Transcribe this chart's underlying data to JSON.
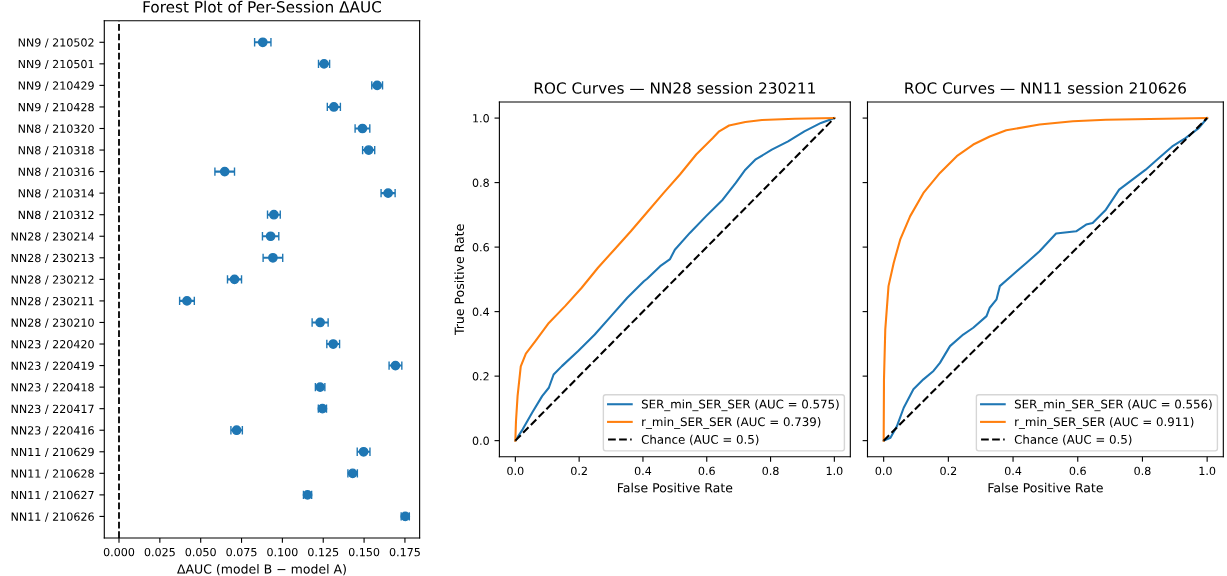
{
  "chart_data": [
    {
      "type": "scatter",
      "orientation": "horizontal",
      "title": "Forest Plot of Per-Session ΔAUC",
      "xlabel": "ΔAUC (model B − model A)",
      "categories": [
        "NN9 / 210502",
        "NN9 / 210501",
        "NN9 / 210429",
        "NN9 / 210428",
        "NN8 / 210320",
        "NN8 / 210318",
        "NN8 / 210316",
        "NN8 / 210314",
        "NN8 / 210312",
        "NN28 / 230214",
        "NN28 / 230213",
        "NN28 / 230212",
        "NN28 / 230211",
        "NN28 / 230210",
        "NN23 / 220420",
        "NN23 / 220419",
        "NN23 / 220418",
        "NN23 / 220417",
        "NN23 / 220416",
        "NN11 / 210629",
        "NN11 / 210628",
        "NN11 / 210627",
        "NN11 / 210626"
      ],
      "series": [
        {
          "color": "#1f77b4",
          "values": [
            0.088,
            0.1255,
            0.158,
            0.1315,
            0.149,
            0.1528,
            0.0647,
            0.1647,
            0.0948,
            0.0928,
            0.0942,
            0.0707,
            0.0416,
            0.1231,
            0.1311,
            0.1692,
            0.1231,
            0.1245,
            0.072,
            0.1497,
            0.143,
            0.1154,
            0.1752
          ],
          "errors": [
            0.005,
            0.0034,
            0.0033,
            0.004,
            0.0045,
            0.0037,
            0.006,
            0.0043,
            0.0039,
            0.005,
            0.006,
            0.0043,
            0.0045,
            0.0049,
            0.0039,
            0.0039,
            0.0029,
            0.0025,
            0.0035,
            0.0039,
            0.0029,
            0.0025,
            0.0025
          ]
        }
      ],
      "marker": "circle",
      "xlim": [
        -0.009,
        0.184
      ],
      "xticks": [
        {
          "value": 0,
          "label": "0.000"
        },
        0.025,
        {
          "value": 0.05,
          "label": "0.050"
        },
        {
          "value": 0.075,
          "label": "0.075"
        },
        {
          "value": 0.1,
          "label": "0.100"
        },
        {
          "value": 0.125,
          "label": "0.125"
        },
        {
          "value": 0.15,
          "label": "0.150"
        },
        {
          "value": 0.175,
          "label": "0.175"
        }
      ],
      "ref_lines": [
        {
          "axis": "x",
          "value": 0,
          "color": "#000000",
          "line_style": "dashed"
        }
      ],
      "grid": false,
      "legend": false
    },
    {
      "type": "line",
      "title": "ROC Curves — NN28 session 230211",
      "xlabel": "False Positive Rate",
      "ylabel": "True Positive Rate",
      "series": [
        {
          "name": "SER_min_SER_SER (AUC = 0.575)",
          "color": "#1f77b4",
          "x": [
            0,
            0.023,
            0.053,
            0.084,
            0.105,
            0.12,
            0.146,
            0.197,
            0.249,
            0.3,
            0.351,
            0.403,
            0.413,
            0.454,
            0.485,
            0.5,
            0.547,
            0.598,
            0.65,
            0.691,
            0.721,
            0.752,
            0.804,
            0.855,
            0.906,
            0.958,
            1
          ],
          "values": [
            0,
            0.035,
            0.087,
            0.138,
            0.164,
            0.205,
            0.231,
            0.278,
            0.329,
            0.386,
            0.443,
            0.494,
            0.502,
            0.541,
            0.563,
            0.592,
            0.644,
            0.696,
            0.747,
            0.799,
            0.84,
            0.871,
            0.902,
            0.928,
            0.959,
            0.985,
            1
          ]
        },
        {
          "name": "r_min_SER_SER (AUC = 0.739)",
          "color": "#ff7f0e",
          "x": [
            0,
            0.002,
            0.007,
            0.017,
            0.033,
            0.064,
            0.105,
            0.156,
            0.208,
            0.259,
            0.31,
            0.362,
            0.413,
            0.465,
            0.516,
            0.567,
            0.619,
            0.639,
            0.67,
            0.721,
            0.773,
            0.876,
            1
          ],
          "values": [
            0,
            0.06,
            0.138,
            0.23,
            0.27,
            0.31,
            0.365,
            0.417,
            0.474,
            0.536,
            0.592,
            0.649,
            0.708,
            0.768,
            0.825,
            0.887,
            0.938,
            0.959,
            0.977,
            0.988,
            0.994,
            0.998,
            1
          ]
        },
        {
          "name": "Chance (AUC = 0.5)",
          "color": "#000000",
          "line_style": "dashed",
          "x": [
            0,
            1
          ],
          "values": [
            0,
            1
          ]
        }
      ],
      "xlim": [
        -0.05,
        1.05
      ],
      "ylim": [
        -0.05,
        1.05
      ],
      "xticks": [
        {
          "value": 0,
          "label": "0.0"
        },
        0.2,
        0.4,
        0.6,
        0.8,
        {
          "value": 1,
          "label": "1.0"
        }
      ],
      "yticks": [
        {
          "value": 0,
          "label": "0.0"
        },
        0.2,
        0.4,
        0.6,
        0.8,
        {
          "value": 1,
          "label": "1.0"
        }
      ],
      "grid": false,
      "legend": "bottom right"
    },
    {
      "type": "line",
      "title": "ROC Curves — NN11 session 210626",
      "xlabel": "False Positive Rate",
      "series": [
        {
          "name": "SER_min_SER_SER (AUC = 0.556)",
          "color": "#1f77b4",
          "x": [
            0,
            0.021,
            0.041,
            0.062,
            0.092,
            0.123,
            0.154,
            0.174,
            0.205,
            0.246,
            0.277,
            0.318,
            0.328,
            0.349,
            0.359,
            0.4,
            0.441,
            0.482,
            0.533,
            0.595,
            0.626,
            0.646,
            0.687,
            0.728,
            0.769,
            0.81,
            0.851,
            0.892,
            0.933,
            0.974,
            1
          ],
          "values": [
            0,
            0.009,
            0.045,
            0.102,
            0.159,
            0.19,
            0.216,
            0.241,
            0.293,
            0.329,
            0.35,
            0.386,
            0.412,
            0.438,
            0.479,
            0.515,
            0.551,
            0.587,
            0.642,
            0.649,
            0.67,
            0.675,
            0.716,
            0.778,
            0.809,
            0.84,
            0.876,
            0.912,
            0.938,
            0.969,
            1
          ]
        },
        {
          "name": "r_min_SER_SER (AUC = 0.911)",
          "color": "#ff7f0e",
          "x": [
            0,
            0.001,
            0.005,
            0.015,
            0.031,
            0.051,
            0.082,
            0.123,
            0.174,
            0.226,
            0.277,
            0.328,
            0.379,
            0.482,
            0.585,
            0.687,
            1
          ],
          "values": [
            0,
            0.19,
            0.345,
            0.479,
            0.551,
            0.623,
            0.696,
            0.768,
            0.83,
            0.882,
            0.918,
            0.943,
            0.962,
            0.98,
            0.99,
            0.995,
            1
          ]
        },
        {
          "name": "Chance (AUC = 0.5)",
          "color": "#000000",
          "line_style": "dashed",
          "x": [
            0,
            1
          ],
          "values": [
            0,
            1
          ]
        }
      ],
      "xlim": [
        -0.05,
        1.05
      ],
      "ylim": [
        -0.05,
        1.05
      ],
      "xticks": [
        {
          "value": 0,
          "label": "0.0"
        },
        0.2,
        0.4,
        0.6,
        0.8,
        {
          "value": 1,
          "label": "1.0"
        }
      ],
      "yticks": [
        0,
        0.2,
        0.4,
        0.6,
        0.8,
        1
      ],
      "tick_labels": "x",
      "grid": false,
      "legend": "bottom right"
    }
  ]
}
